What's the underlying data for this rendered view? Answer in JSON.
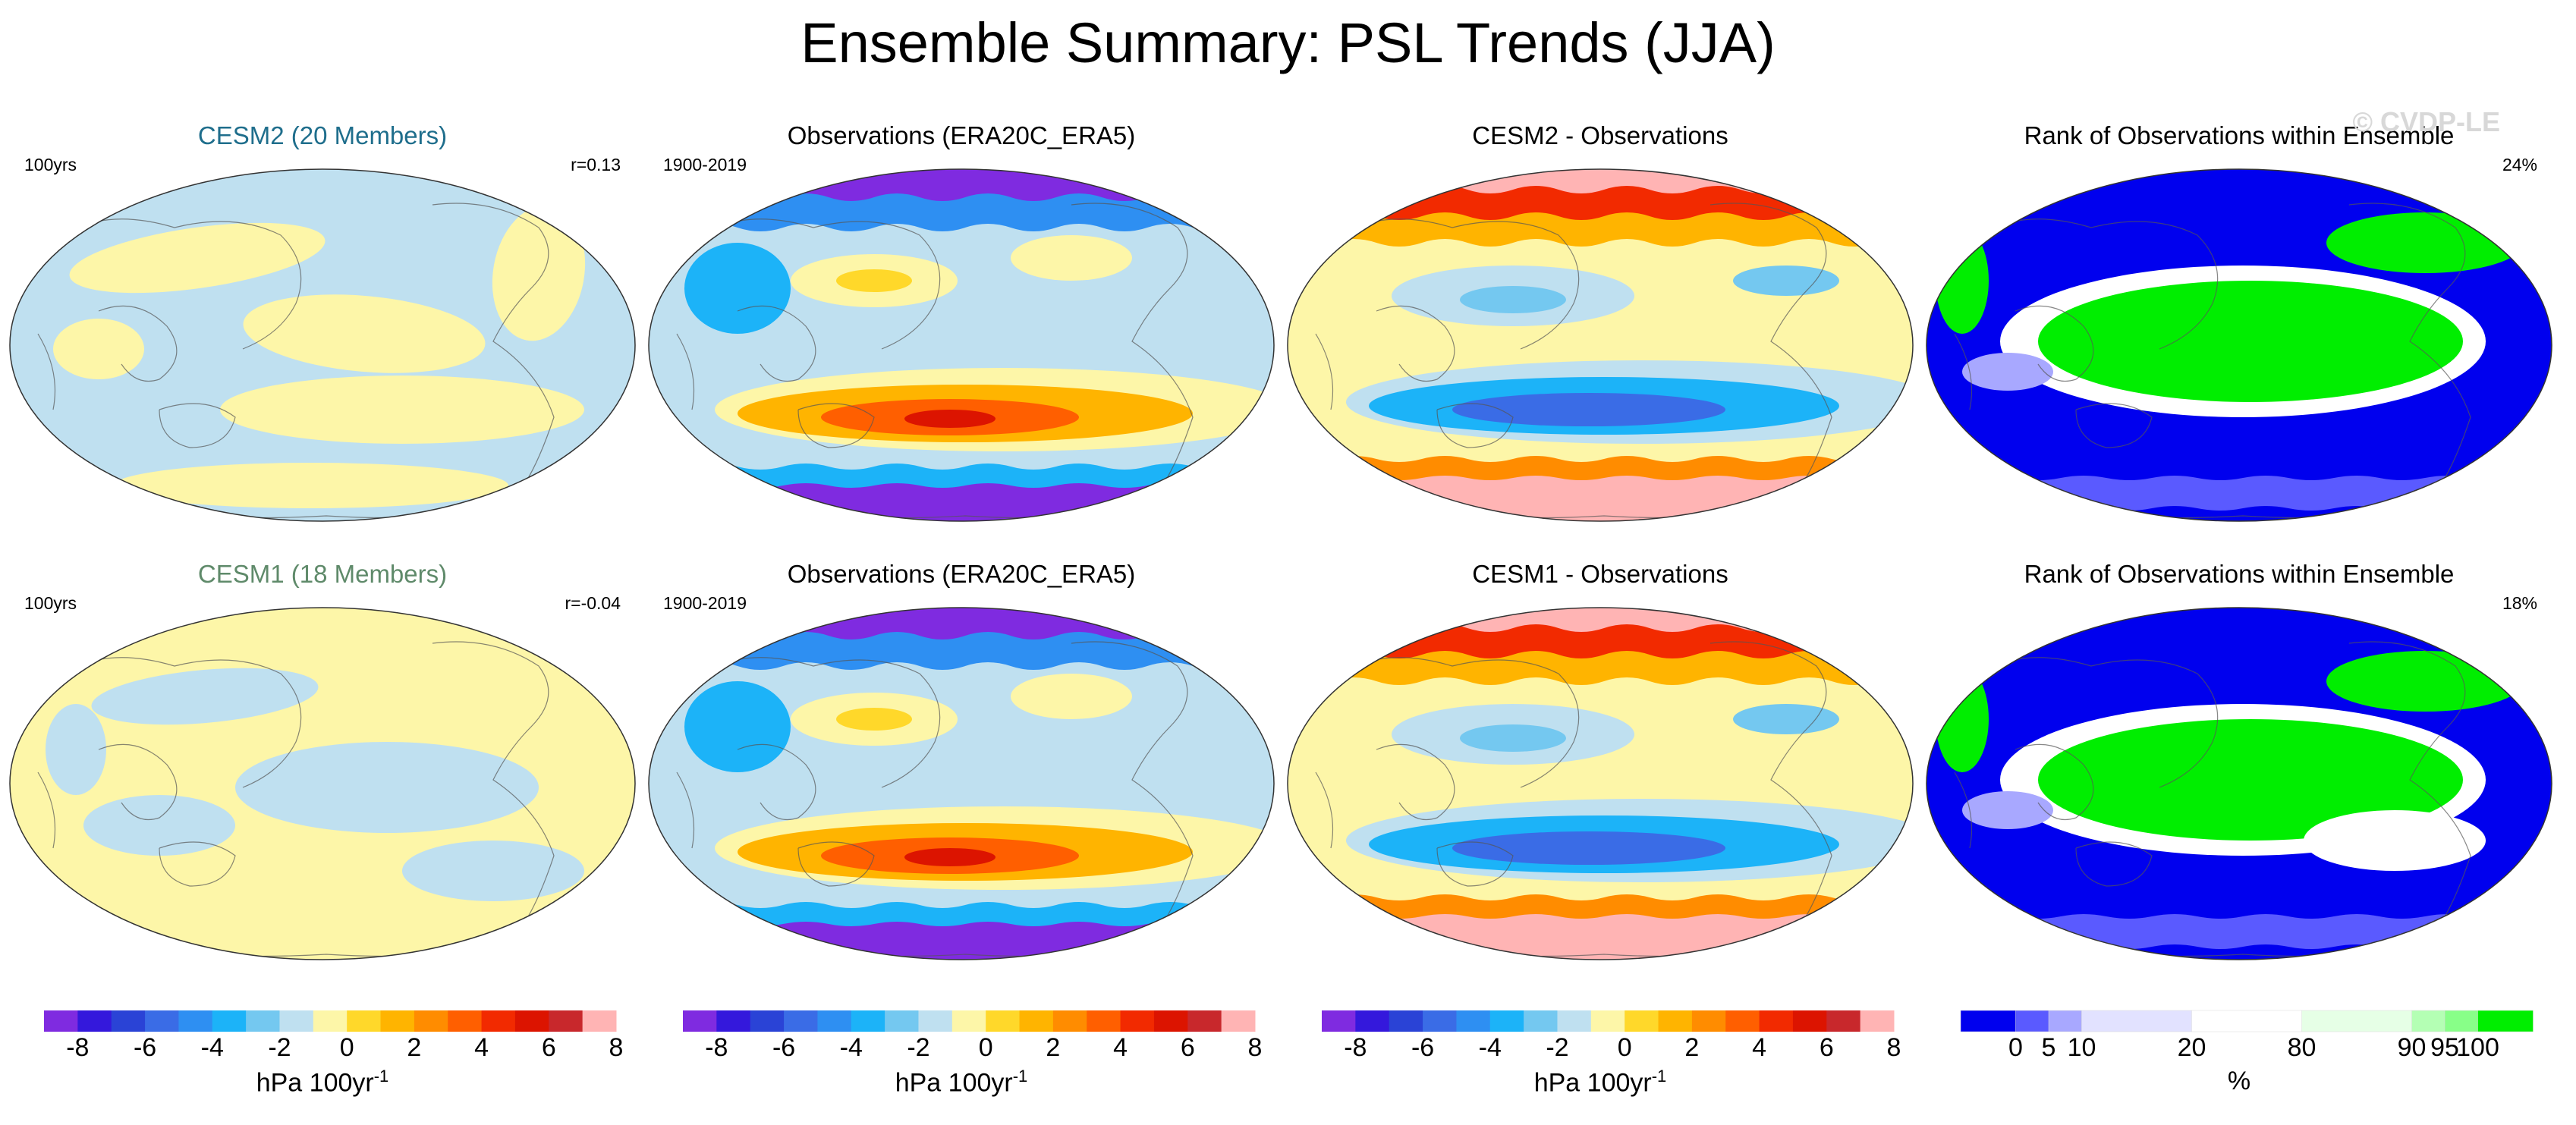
{
  "title": "Ensemble Summary: PSL Trends (JJA)",
  "watermark": "© CVDP-LE",
  "colors": {
    "cesm2_title": "#1f6e8c",
    "cesm1_title": "#5f8a6a",
    "ocean_light": "#bfe0f0",
    "land_yellow": "#fdf6a8",
    "rank_blue": "#0000ee",
    "rank_green": "#00ee00"
  },
  "rows": [
    {
      "panels": [
        {
          "title": "CESM2 (20 Members)",
          "left": "100yrs",
          "right": "r=0.13",
          "kind": "model"
        },
        {
          "title": "Observations (ERA20C_ERA5)",
          "left": "1900-2019",
          "right": "",
          "kind": "obs"
        },
        {
          "title": "CESM2 - Observations",
          "left": "",
          "right": "",
          "kind": "diff"
        },
        {
          "title": "Rank of Observations within Ensemble",
          "left": "",
          "right": "24%",
          "kind": "rank"
        }
      ]
    },
    {
      "panels": [
        {
          "title": "CESM1 (18 Members)",
          "left": "100yrs",
          "right": "r=-0.04",
          "kind": "model"
        },
        {
          "title": "Observations (ERA20C_ERA5)",
          "left": "1900-2019",
          "right": "",
          "kind": "obs"
        },
        {
          "title": "CESM1 - Observations",
          "left": "",
          "right": "",
          "kind": "diff"
        },
        {
          "title": "Rank of Observations within Ensemble",
          "left": "",
          "right": "18%",
          "kind": "rank"
        }
      ]
    }
  ],
  "colorbar_trend": {
    "colors": [
      "#7f2be0",
      "#3418dc",
      "#2a43d6",
      "#3a6ce6",
      "#2e8ff2",
      "#1cb3f8",
      "#74c8f0",
      "#bfe0f0",
      "#fdf6a8",
      "#ffd82a",
      "#ffb400",
      "#ff8c00",
      "#ff5f00",
      "#f22a00",
      "#dc1400",
      "#c8282c",
      "#ffb4b4"
    ],
    "ticks": [
      "-8",
      "-6",
      "-4",
      "-2",
      "0",
      "2",
      "4",
      "6",
      "8"
    ],
    "unit": "hPa 100yr",
    "unit_exp": "-1"
  },
  "colorbar_rank": {
    "colors": [
      "#0000ee",
      "#5a5aff",
      "#a8a8ff",
      "#e2e2ff",
      "#ffffff",
      "#e6ffe6",
      "#b4ffb4",
      "#88ff88",
      "#00ee00"
    ],
    "ticks": [
      "0",
      "5",
      "10",
      "20",
      "80",
      "90",
      "95",
      "100"
    ],
    "unit": "%"
  },
  "chart_data": [
    {
      "type": "heatmap",
      "title": "CESM2 (20 Members)",
      "annotation_left": "100yrs",
      "annotation_right": "r=0.13",
      "colorbar_ticks": [
        -8,
        -6,
        -4,
        -2,
        0,
        2,
        4,
        6,
        8
      ],
      "colorbar_unit": "hPa 100yr-1"
    },
    {
      "type": "heatmap",
      "title": "Observations (ERA20C_ERA5)",
      "annotation_left": "1900-2019",
      "colorbar_ticks": [
        -8,
        -6,
        -4,
        -2,
        0,
        2,
        4,
        6,
        8
      ],
      "colorbar_unit": "hPa 100yr-1"
    },
    {
      "type": "heatmap",
      "title": "CESM2 - Observations",
      "colorbar_ticks": [
        -8,
        -6,
        -4,
        -2,
        0,
        2,
        4,
        6,
        8
      ],
      "colorbar_unit": "hPa 100yr-1"
    },
    {
      "type": "heatmap",
      "title": "Rank of Observations within Ensemble",
      "annotation_right": "24%",
      "colorbar_ticks": [
        0,
        5,
        10,
        20,
        80,
        90,
        95,
        100
      ],
      "colorbar_unit": "%"
    },
    {
      "type": "heatmap",
      "title": "CESM1 (18 Members)",
      "annotation_left": "100yrs",
      "annotation_right": "r=-0.04"
    },
    {
      "type": "heatmap",
      "title": "Observations (ERA20C_ERA5)",
      "annotation_left": "1900-2019"
    },
    {
      "type": "heatmap",
      "title": "CESM1 - Observations"
    },
    {
      "type": "heatmap",
      "title": "Rank of Observations within Ensemble",
      "annotation_right": "18%"
    }
  ]
}
